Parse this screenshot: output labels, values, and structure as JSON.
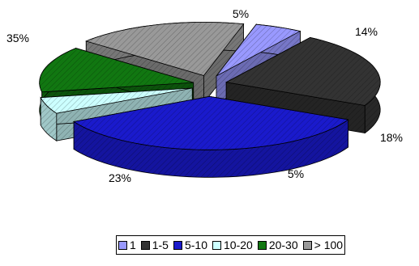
{
  "chart_data": {
    "type": "pie",
    "style": "3d-exploded",
    "categories": [
      "1",
      "1-5",
      "5-10",
      "10-20",
      "20-30",
      "> 100"
    ],
    "values": [
      5,
      23,
      35,
      5,
      14,
      18
    ],
    "value_labels": [
      "5%",
      "23%",
      "35%",
      "5%",
      "14%",
      "18%"
    ],
    "colors": [
      "#9999ff",
      "#333333",
      "#1a1acc",
      "#ccffff",
      "#117711",
      "#999999"
    ],
    "title": "",
    "legend": {
      "position": "bottom",
      "entries": [
        "1",
        "1-5",
        "5-10",
        "10-20",
        "20-30",
        "> 100"
      ]
    }
  }
}
